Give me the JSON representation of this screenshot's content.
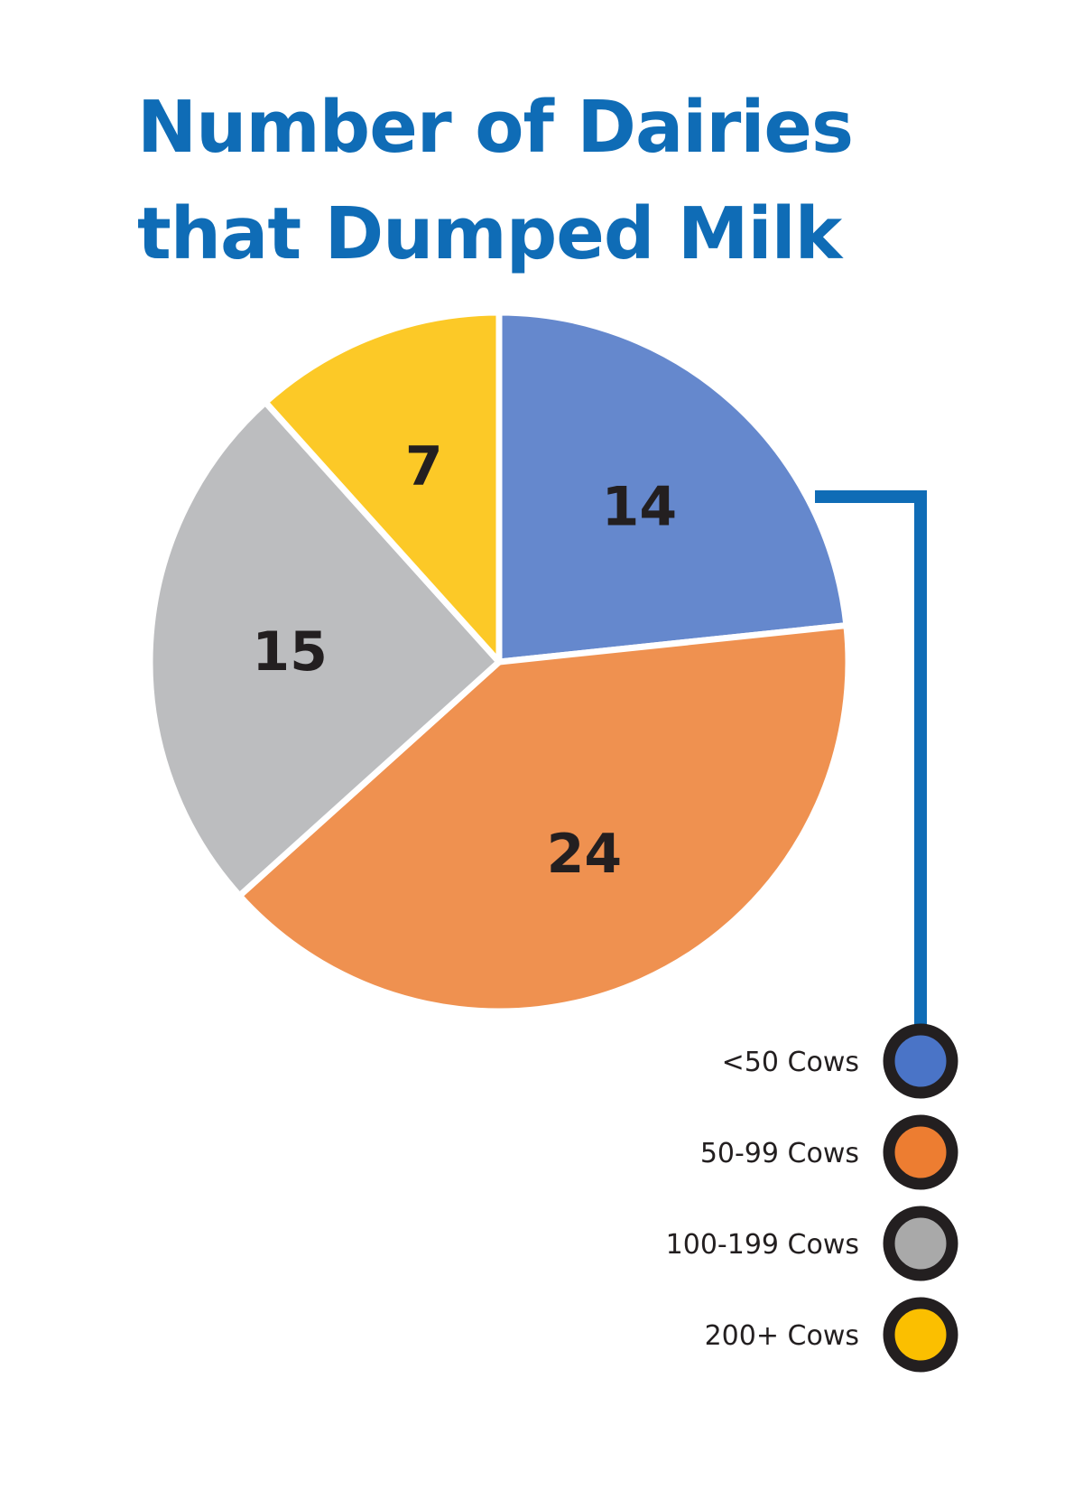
{
  "chart_data": {
    "type": "pie",
    "title": "Number of Dairies that Dumped Milk",
    "title_lines": [
      "Number of Dairies",
      "that Dumped Milk"
    ],
    "slices": [
      {
        "label": "<50 Cows",
        "value": 14,
        "color": "#6588cd",
        "legend_color": "#4a74c7"
      },
      {
        "label": "50-99 Cows",
        "value": 24,
        "color": "#ef9150",
        "legend_color": "#ed7d31"
      },
      {
        "label": "100-199 Cows",
        "value": 15,
        "color": "#bcbdbf",
        "legend_color": "#a9a9a9"
      },
      {
        "label": "200+ Cows",
        "value": 7,
        "color": "#fcc927",
        "legend_color": "#fbbf00"
      }
    ],
    "legend_position": "bottom-right"
  },
  "colors": {
    "title": "#0f6cb6",
    "connector": "#0f6cb6",
    "label_text": "#231f20",
    "separator": "#ffffff"
  }
}
